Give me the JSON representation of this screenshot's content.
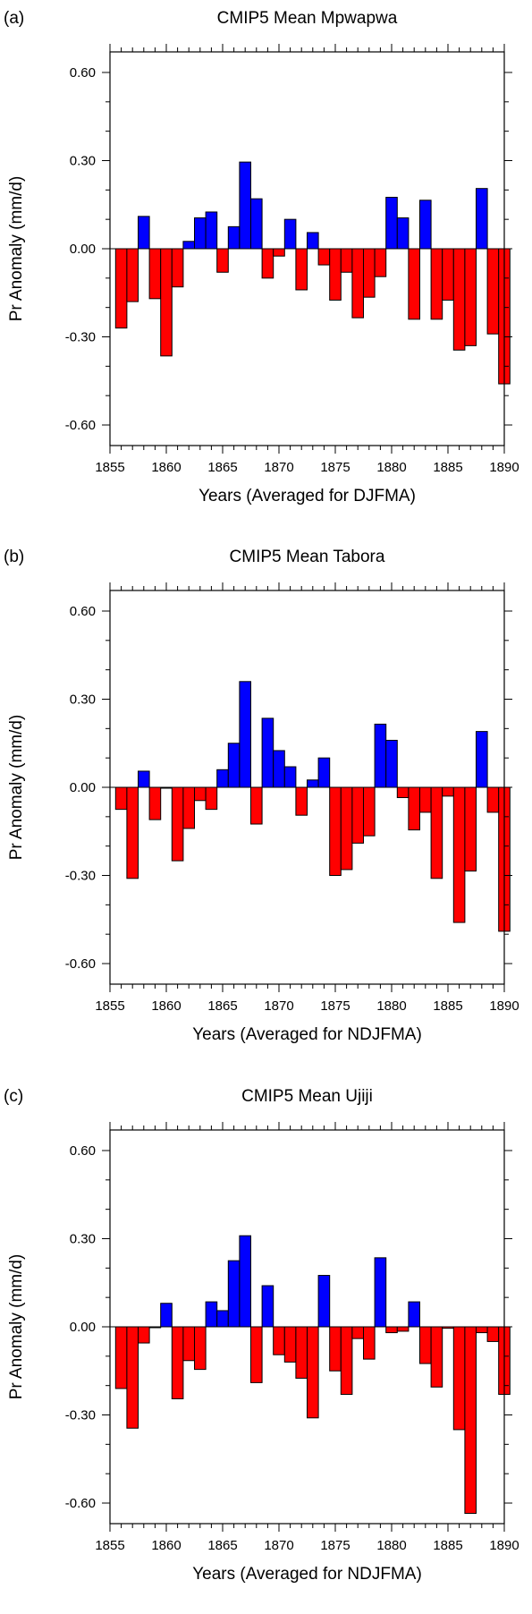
{
  "colors": {
    "positive": "#0000ff",
    "negative": "#ff0000",
    "edge": "#000000"
  },
  "chart_data": [
    {
      "type": "bar",
      "panel_label": "(a)",
      "title": "CMIP5 Mean Mpwapwa",
      "xlabel": "Years (Averaged for DJFMA)",
      "ylabel": "Pr Anomaly (mm/d)",
      "xlim": [
        1855,
        1890
      ],
      "ylim": [
        -0.67,
        0.67
      ],
      "xticks": [
        1855,
        1860,
        1865,
        1870,
        1875,
        1880,
        1885,
        1890
      ],
      "xtick_labels": [
        "1855",
        "1860",
        "1865",
        "1870",
        "1875",
        "1880",
        "1885",
        "1890"
      ],
      "yticks": [
        -0.6,
        -0.3,
        0.0,
        0.3,
        0.6
      ],
      "ytick_labels": [
        "-0.60",
        "-0.30",
        "0.00",
        "0.30",
        "0.60"
      ],
      "x": [
        1856,
        1857,
        1858,
        1859,
        1860,
        1861,
        1862,
        1863,
        1864,
        1865,
        1866,
        1867,
        1868,
        1869,
        1870,
        1871,
        1872,
        1873,
        1874,
        1875,
        1876,
        1877,
        1878,
        1879,
        1880,
        1881,
        1882,
        1883,
        1884,
        1885,
        1886,
        1887,
        1888,
        1889,
        1890
      ],
      "values": [
        -0.27,
        -0.18,
        0.11,
        -0.17,
        -0.365,
        -0.13,
        0.025,
        0.105,
        0.125,
        -0.08,
        0.075,
        0.295,
        0.17,
        -0.1,
        -0.025,
        0.1,
        -0.14,
        0.055,
        -0.055,
        -0.175,
        -0.08,
        -0.235,
        -0.165,
        -0.095,
        0.175,
        0.105,
        -0.24,
        0.165,
        -0.24,
        -0.175,
        -0.345,
        -0.33,
        0.205,
        -0.29,
        -0.46
      ]
    },
    {
      "type": "bar",
      "panel_label": "(b)",
      "title": "CMIP5 Mean Tabora",
      "xlabel": "Years (Averaged for NDJFMA)",
      "ylabel": "Pr Anomaly (mm/d)",
      "xlim": [
        1855,
        1890
      ],
      "ylim": [
        -0.67,
        0.67
      ],
      "xticks": [
        1855,
        1860,
        1865,
        1870,
        1875,
        1880,
        1885,
        1890
      ],
      "xtick_labels": [
        "1855",
        "1860",
        "1865",
        "1870",
        "1875",
        "1880",
        "1885",
        "1890"
      ],
      "yticks": [
        -0.6,
        -0.3,
        0.0,
        0.3,
        0.6
      ],
      "ytick_labels": [
        "-0.60",
        "-0.30",
        "0.00",
        "0.30",
        "0.60"
      ],
      "x": [
        1856,
        1857,
        1858,
        1859,
        1860,
        1861,
        1862,
        1863,
        1864,
        1865,
        1866,
        1867,
        1868,
        1869,
        1870,
        1871,
        1872,
        1873,
        1874,
        1875,
        1876,
        1877,
        1878,
        1879,
        1880,
        1881,
        1882,
        1883,
        1884,
        1885,
        1886,
        1887,
        1888,
        1889,
        1890
      ],
      "values": [
        -0.075,
        -0.31,
        0.055,
        -0.11,
        -0.003,
        -0.25,
        -0.14,
        -0.045,
        -0.075,
        0.06,
        0.15,
        0.36,
        -0.125,
        0.235,
        0.125,
        0.07,
        -0.095,
        0.025,
        0.1,
        -0.3,
        -0.28,
        -0.19,
        -0.165,
        0.215,
        0.16,
        -0.035,
        -0.145,
        -0.085,
        -0.31,
        -0.03,
        -0.46,
        -0.285,
        0.19,
        -0.085,
        -0.49
      ]
    },
    {
      "type": "bar",
      "panel_label": "(c)",
      "title": "CMIP5 Mean Ujiji",
      "xlabel": "Years (Averaged for NDJFMA)",
      "ylabel": "Pr Anomaly (mm/d)",
      "xlim": [
        1855,
        1890
      ],
      "ylim": [
        -0.67,
        0.67
      ],
      "xticks": [
        1855,
        1860,
        1865,
        1870,
        1875,
        1880,
        1885,
        1890
      ],
      "xtick_labels": [
        "1855",
        "1860",
        "1865",
        "1870",
        "1875",
        "1880",
        "1885",
        "1890"
      ],
      "yticks": [
        -0.6,
        -0.3,
        0.0,
        0.3,
        0.6
      ],
      "ytick_labels": [
        "-0.60",
        "-0.30",
        "0.00",
        "0.30",
        "0.60"
      ],
      "x": [
        1856,
        1857,
        1858,
        1859,
        1860,
        1861,
        1862,
        1863,
        1864,
        1865,
        1866,
        1867,
        1868,
        1869,
        1870,
        1871,
        1872,
        1873,
        1874,
        1875,
        1876,
        1877,
        1878,
        1879,
        1880,
        1881,
        1882,
        1883,
        1884,
        1885,
        1886,
        1887,
        1888,
        1889,
        1890
      ],
      "values": [
        -0.21,
        -0.345,
        -0.055,
        -0.003,
        0.08,
        -0.245,
        -0.115,
        -0.145,
        0.085,
        0.055,
        0.225,
        0.31,
        -0.19,
        0.14,
        -0.095,
        -0.12,
        -0.175,
        -0.31,
        0.175,
        -0.15,
        -0.23,
        -0.04,
        -0.11,
        0.235,
        -0.02,
        -0.015,
        0.085,
        -0.125,
        -0.205,
        -0.005,
        -0.35,
        -0.635,
        -0.02,
        -0.05,
        -0.23
      ]
    }
  ]
}
